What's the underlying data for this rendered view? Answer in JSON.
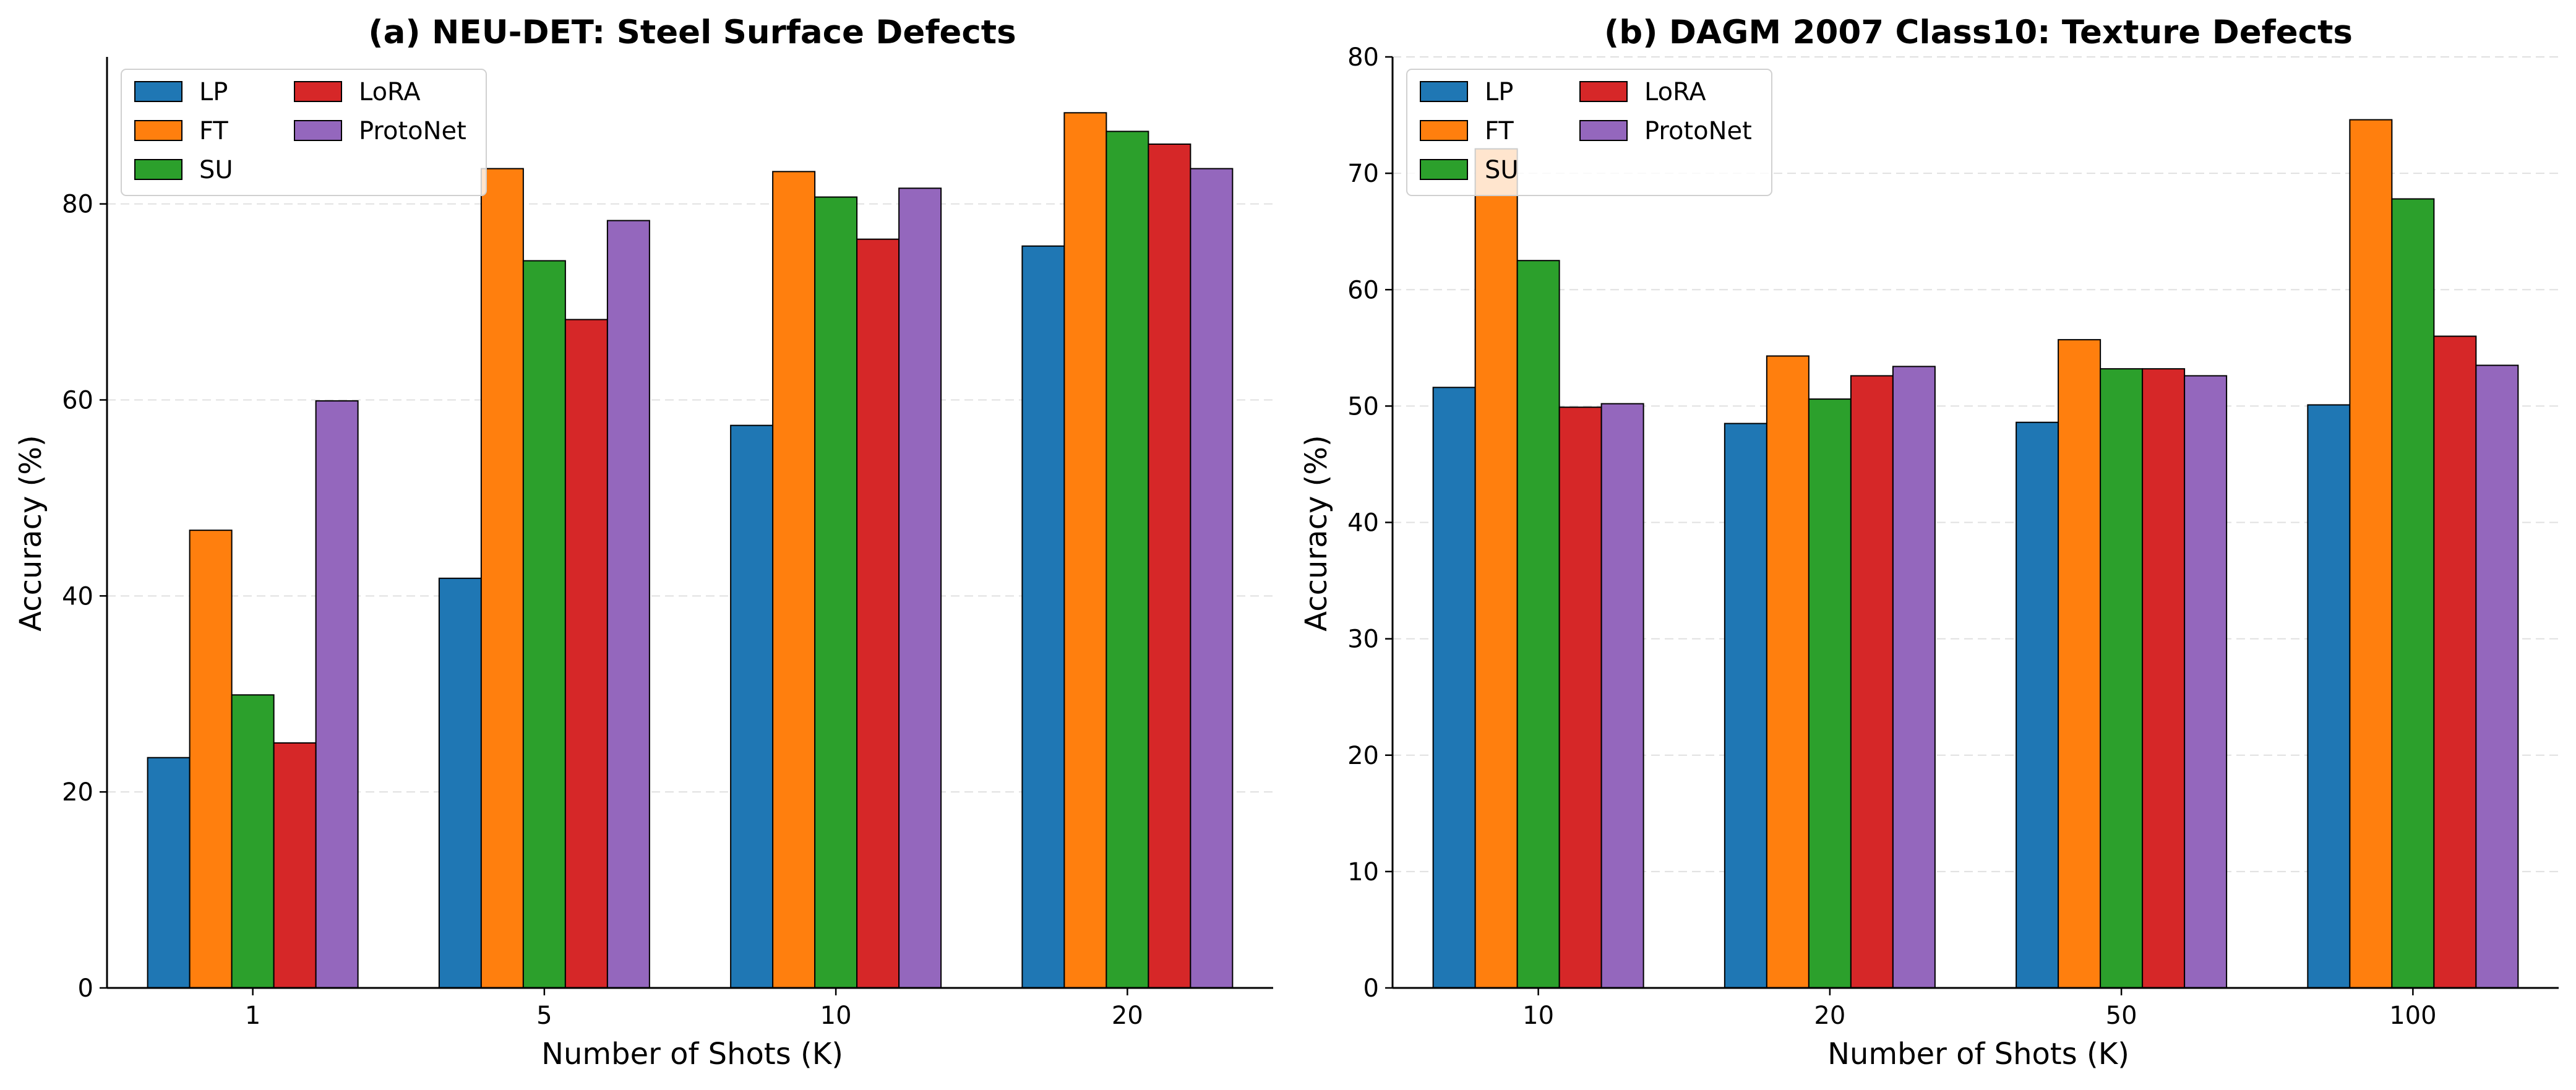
{
  "colors": {
    "LP": "#1f77b4",
    "FT": "#ff7f0e",
    "SU": "#2ca02c",
    "LoRA": "#d62728",
    "ProtoNet": "#9467bd"
  },
  "chart_data": [
    {
      "type": "bar",
      "title": "(a) NEU-DET: Steel Surface Defects",
      "xlabel": "Number of Shots (K)",
      "ylabel": "Accuracy (%)",
      "categories": [
        "1",
        "5",
        "10",
        "20"
      ],
      "ylim": [
        0,
        95
      ],
      "yticks": [
        0,
        20,
        40,
        60,
        80
      ],
      "grid": "y-dashed",
      "legend": "upper-left, 2 columns",
      "series": [
        {
          "name": "LP",
          "values": [
            23.5,
            41.8,
            57.4,
            75.7
          ]
        },
        {
          "name": "FT",
          "values": [
            46.7,
            83.6,
            83.3,
            89.3
          ]
        },
        {
          "name": "SU",
          "values": [
            29.9,
            74.2,
            80.7,
            87.4
          ]
        },
        {
          "name": "LoRA",
          "values": [
            25.0,
            68.2,
            76.4,
            86.1
          ]
        },
        {
          "name": "ProtoNet",
          "values": [
            59.9,
            78.3,
            81.6,
            83.6
          ]
        }
      ]
    },
    {
      "type": "bar",
      "title": "(b) DAGM 2007 Class10: Texture Defects",
      "xlabel": "Number of Shots (K)",
      "ylabel": "Accuracy (%)",
      "categories": [
        "10",
        "20",
        "50",
        "100"
      ],
      "ylim": [
        0,
        80
      ],
      "yticks": [
        0,
        10,
        20,
        30,
        40,
        50,
        60,
        70,
        80
      ],
      "grid": "y-dashed",
      "legend": "upper-left, 2 columns",
      "series": [
        {
          "name": "LP",
          "values": [
            51.6,
            48.5,
            48.6,
            50.1
          ]
        },
        {
          "name": "FT",
          "values": [
            72.1,
            54.3,
            55.7,
            74.6
          ]
        },
        {
          "name": "SU",
          "values": [
            62.5,
            50.6,
            53.2,
            67.8
          ]
        },
        {
          "name": "LoRA",
          "values": [
            49.9,
            52.6,
            53.2,
            56.0
          ]
        },
        {
          "name": "ProtoNet",
          "values": [
            50.2,
            53.4,
            52.6,
            53.5
          ]
        }
      ]
    }
  ]
}
